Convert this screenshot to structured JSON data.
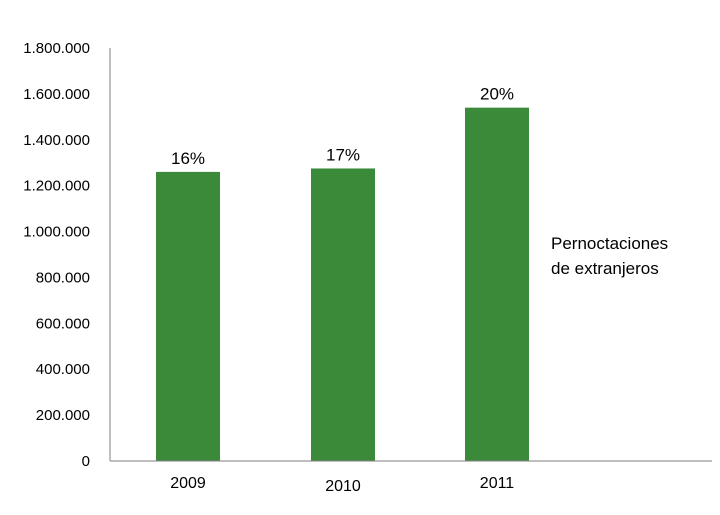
{
  "chart_data": {
    "type": "bar",
    "categories": [
      "2009",
      "2010",
      "2011"
    ],
    "values": [
      1260000,
      1275000,
      1540000
    ],
    "data_labels": [
      "16%",
      "17%",
      "20%"
    ],
    "series": [
      {
        "name": "Pernoctaciones de extranjeros",
        "values": [
          1260000,
          1275000,
          1540000
        ]
      }
    ],
    "legend_lines": [
      "Pernoctaciones",
      "de extranjeros"
    ],
    "y_ticks": [
      "0",
      "200.000",
      "400.000",
      "600.000",
      "800.000",
      "1.000.000",
      "1.200.000",
      "1.400.000",
      "1.600.000",
      "1.800.000"
    ],
    "ylim": [
      0,
      1800000
    ],
    "title": "",
    "xlabel": "",
    "ylabel": "",
    "grid": false,
    "legend_position": "right",
    "bar_color": "#3b8a3a"
  }
}
